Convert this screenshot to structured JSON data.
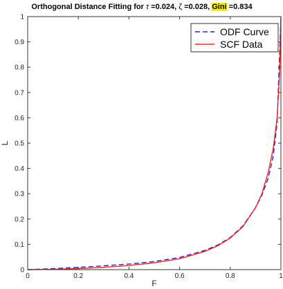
{
  "chart_data": {
    "type": "line",
    "title": {
      "prefix": "Orthogonal Distance Fitting for ",
      "tau_symbol": "τ",
      "tau_value": " =0.024, ",
      "zeta_symbol": "ζ",
      "zeta_value": " =0.028, ",
      "gini_label": "Gini",
      "gini_value": " =0.834"
    },
    "highlight_color": "#f0f000",
    "xlabel": "F",
    "ylabel": "L",
    "xlim": [
      0,
      1
    ],
    "ylim": [
      0,
      1
    ],
    "x_ticks": [
      {
        "value": 0,
        "label": "0"
      },
      {
        "value": 0.2,
        "label": "0.2"
      },
      {
        "value": 0.4,
        "label": "0.4"
      },
      {
        "value": 0.6,
        "label": "0.6"
      },
      {
        "value": 0.8,
        "label": "0.8"
      },
      {
        "value": 1,
        "label": "1"
      }
    ],
    "y_ticks": [
      {
        "value": 0,
        "label": "0"
      },
      {
        "value": 0.1,
        "label": "0.1"
      },
      {
        "value": 0.2,
        "label": "0.2"
      },
      {
        "value": 0.3,
        "label": "0.3"
      },
      {
        "value": 0.4,
        "label": "0.4"
      },
      {
        "value": 0.5,
        "label": "0.5"
      },
      {
        "value": 0.6,
        "label": "0.6"
      },
      {
        "value": 0.7,
        "label": "0.7"
      },
      {
        "value": 0.8,
        "label": "0.8"
      },
      {
        "value": 0.9,
        "label": "0.9"
      },
      {
        "value": 1,
        "label": "1"
      }
    ],
    "grid": false,
    "legend_position": "top-right",
    "series": [
      {
        "name": "ODF Curve",
        "color": "#2222cc",
        "dash": true,
        "x": [
          0,
          0.1,
          0.2,
          0.3,
          0.4,
          0.5,
          0.6,
          0.7,
          0.75,
          0.8,
          0.85,
          0.9,
          0.925,
          0.95,
          0.97,
          0.985,
          1
        ],
        "y": [
          0,
          0.004,
          0.009,
          0.015,
          0.022,
          0.032,
          0.048,
          0.076,
          0.097,
          0.127,
          0.173,
          0.245,
          0.295,
          0.362,
          0.45,
          0.58,
          1
        ]
      },
      {
        "name": "SCF Data",
        "color": "#ee2222",
        "dash": false,
        "x": [
          0,
          0.1,
          0.2,
          0.3,
          0.4,
          0.5,
          0.6,
          0.7,
          0.75,
          0.8,
          0.85,
          0.9,
          0.925,
          0.95,
          0.97,
          0.985,
          0.995,
          1
        ],
        "y": [
          0,
          0.001,
          0.004,
          0.009,
          0.016,
          0.027,
          0.043,
          0.072,
          0.094,
          0.125,
          0.17,
          0.245,
          0.3,
          0.385,
          0.48,
          0.6,
          0.78,
          1
        ]
      }
    ]
  }
}
